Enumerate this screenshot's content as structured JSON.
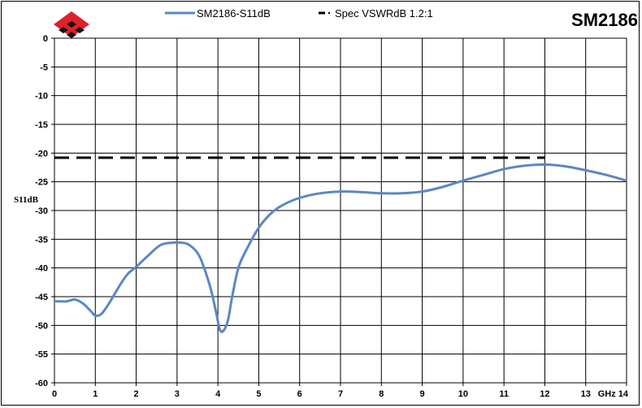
{
  "header": {
    "model": "SM2186"
  },
  "colors": {
    "series": "#5b87c5",
    "spec": "#000000",
    "grid": "#000000",
    "logo_red": "#e0202a",
    "logo_black": "#111111"
  },
  "chart_data": {
    "type": "line",
    "title": "SM2186",
    "ylabel": "S11dB",
    "xlabel_unit": "GHz",
    "xlim": [
      0,
      14
    ],
    "ylim": [
      -60,
      0
    ],
    "grid": true,
    "legend_position": "top",
    "x_ticks": [
      "0",
      "1",
      "2",
      "3",
      "4",
      "5",
      "6",
      "7",
      "8",
      "9",
      "10",
      "11",
      "12",
      "13",
      "14"
    ],
    "y_ticks": [
      "0",
      "-5",
      "-10",
      "-15",
      "-20",
      "-25",
      "-30",
      "-35",
      "-40",
      "-45",
      "-50",
      "-55",
      "-60"
    ],
    "series": [
      {
        "name": "SM2186-S11dB",
        "style": "solid",
        "x": [
          0,
          0.3,
          0.5,
          0.7,
          0.9,
          1.0,
          1.15,
          1.35,
          1.6,
          1.8,
          2.0,
          2.3,
          2.6,
          2.9,
          3.1,
          3.3,
          3.55,
          3.8,
          3.95,
          4.05,
          4.15,
          4.25,
          4.35,
          4.5,
          4.7,
          5.0,
          5.3,
          5.6,
          6.0,
          6.5,
          7.0,
          7.5,
          8.0,
          8.5,
          9.0,
          9.5,
          10.0,
          10.5,
          11.0,
          11.5,
          12.0,
          12.5,
          13.0,
          13.5,
          14.0
        ],
        "values": [
          -45.8,
          -45.8,
          -45.5,
          -46.2,
          -47.6,
          -48.3,
          -48.0,
          -46.0,
          -43.0,
          -41.0,
          -39.8,
          -37.8,
          -36.0,
          -35.6,
          -35.6,
          -36.0,
          -38.0,
          -43.0,
          -47.5,
          -50.8,
          -50.8,
          -49.0,
          -45.0,
          -40.0,
          -36.8,
          -33.0,
          -30.5,
          -29.0,
          -27.8,
          -27.0,
          -26.7,
          -26.8,
          -27.0,
          -27.0,
          -26.7,
          -25.9,
          -24.8,
          -23.8,
          -22.8,
          -22.2,
          -22.0,
          -22.3,
          -23.0,
          -23.8,
          -24.8
        ]
      },
      {
        "name": "Spec VSWRdB 1.2:1",
        "style": "dashed",
        "x": [
          0,
          12
        ],
        "values": [
          -20.8,
          -20.8
        ]
      }
    ]
  }
}
